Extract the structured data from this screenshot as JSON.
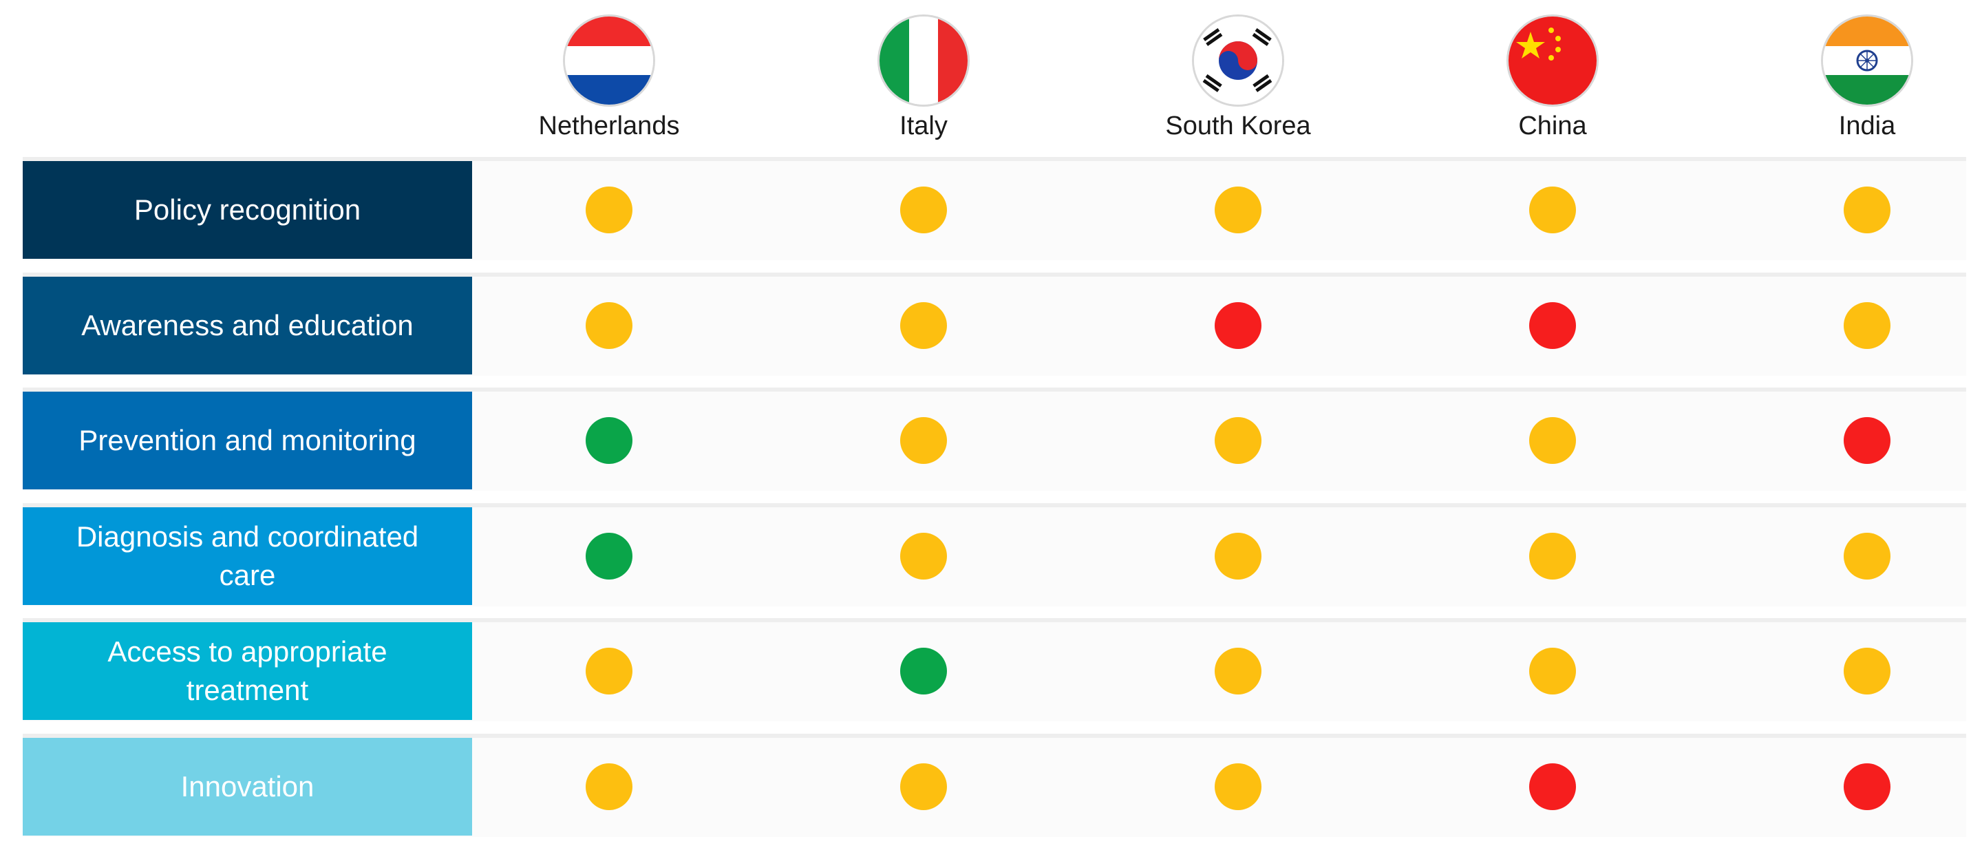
{
  "chart_data": {
    "type": "table",
    "columns": [
      "Netherlands",
      "Italy",
      "South Korea",
      "China",
      "India"
    ],
    "rows": [
      {
        "label": "Policy recognition",
        "values": [
          "yellow",
          "yellow",
          "yellow",
          "yellow",
          "yellow"
        ]
      },
      {
        "label": "Awareness and education",
        "values": [
          "yellow",
          "yellow",
          "red",
          "red",
          "yellow"
        ]
      },
      {
        "label": "Prevention and monitoring",
        "values": [
          "green",
          "yellow",
          "yellow",
          "yellow",
          "red"
        ]
      },
      {
        "label": "Diagnosis and coordinated care",
        "values": [
          "green",
          "yellow",
          "yellow",
          "yellow",
          "yellow"
        ]
      },
      {
        "label": "Access to appropriate treatment",
        "values": [
          "yellow",
          "green",
          "yellow",
          "yellow",
          "yellow"
        ]
      },
      {
        "label": "Innovation",
        "values": [
          "yellow",
          "yellow",
          "yellow",
          "red",
          "red"
        ]
      }
    ],
    "status_colors": {
      "green": "#0aa549",
      "yellow": "#fdbf10",
      "red": "#f61e1e"
    },
    "row_label_colors": [
      "#003557",
      "#01507f",
      "#006bb2",
      "#0197d8",
      "#02b4d4",
      "#74d2e7"
    ],
    "flag_icons": [
      "netherlands-flag-icon",
      "italy-flag-icon",
      "south-korea-flag-icon",
      "china-flag-icon",
      "india-flag-icon"
    ]
  }
}
